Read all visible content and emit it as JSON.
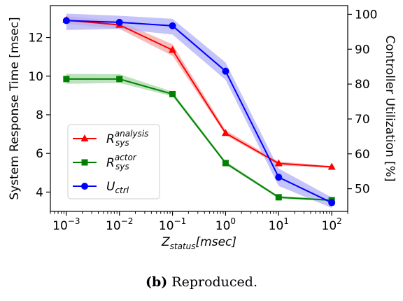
{
  "chart_data": {
    "type": "line",
    "x": [
      0.001,
      0.01,
      0.1,
      1,
      10,
      100
    ],
    "xscale": "log",
    "xlim": [
      0.0005,
      200
    ],
    "xticks": [
      0.001,
      0.01,
      0.1,
      1,
      10,
      100
    ],
    "xtick_labels": [
      {
        "base": "10",
        "exp": "−3"
      },
      {
        "base": "10",
        "exp": "−2"
      },
      {
        "base": "10",
        "exp": "−1"
      },
      {
        "base": "10",
        "exp": "0"
      },
      {
        "base": "10",
        "exp": "1"
      },
      {
        "base": "10",
        "exp": "2"
      }
    ],
    "xlabel": {
      "main": "Z",
      "sub": "status",
      "rest": "[msec]"
    },
    "ylabel_left": "System Response Time [msec]",
    "ylabel_right": "Controller Utilization [%]",
    "ylim_left": [
      3.0,
      13.65
    ],
    "yticks_left": [
      4,
      6,
      8,
      10,
      12
    ],
    "ylim_right": [
      43.5,
      102.5
    ],
    "yticks_right": [
      50,
      60,
      70,
      80,
      90,
      100
    ],
    "legend_position": "center-left",
    "grid": false,
    "series": [
      {
        "name": {
          "main": "R",
          "sup": "analysis",
          "sub": "sys"
        },
        "axis": "left",
        "color": "#ff0000",
        "band": "#f4a6a6",
        "marker": "triangle",
        "values": [
          12.9,
          12.65,
          11.35,
          7.05,
          5.48,
          5.3
        ],
        "band_low": [
          12.7,
          12.45,
          11.05,
          6.95,
          5.38,
          5.25
        ],
        "band_high": [
          13.1,
          12.85,
          11.65,
          7.2,
          5.58,
          5.35
        ]
      },
      {
        "name": {
          "main": "R",
          "sup": "actor",
          "sub": "sys"
        },
        "axis": "left",
        "color": "#008000",
        "band": "#a8d8a8",
        "marker": "square",
        "values": [
          9.85,
          9.85,
          9.07,
          5.5,
          3.73,
          3.58
        ],
        "band_low": [
          9.6,
          9.65,
          8.95,
          5.42,
          3.66,
          3.52
        ],
        "band_high": [
          10.12,
          10.1,
          9.2,
          5.6,
          3.8,
          3.64
        ]
      },
      {
        "name": {
          "main": "U",
          "sub": "ctrl"
        },
        "axis": "right",
        "color": "#0000ff",
        "band": "#b0b0f8",
        "marker": "circle",
        "values": [
          98.2,
          97.7,
          96.7,
          83.7,
          53.3,
          46.0
        ],
        "band_low": [
          95.5,
          95.8,
          94.2,
          81.2,
          50.8,
          44.5
        ],
        "band_high": [
          100.2,
          99.6,
          98.7,
          86.2,
          55.8,
          47.5
        ]
      }
    ]
  },
  "caption": {
    "bold": "(b)",
    "text": "Reproduced."
  }
}
